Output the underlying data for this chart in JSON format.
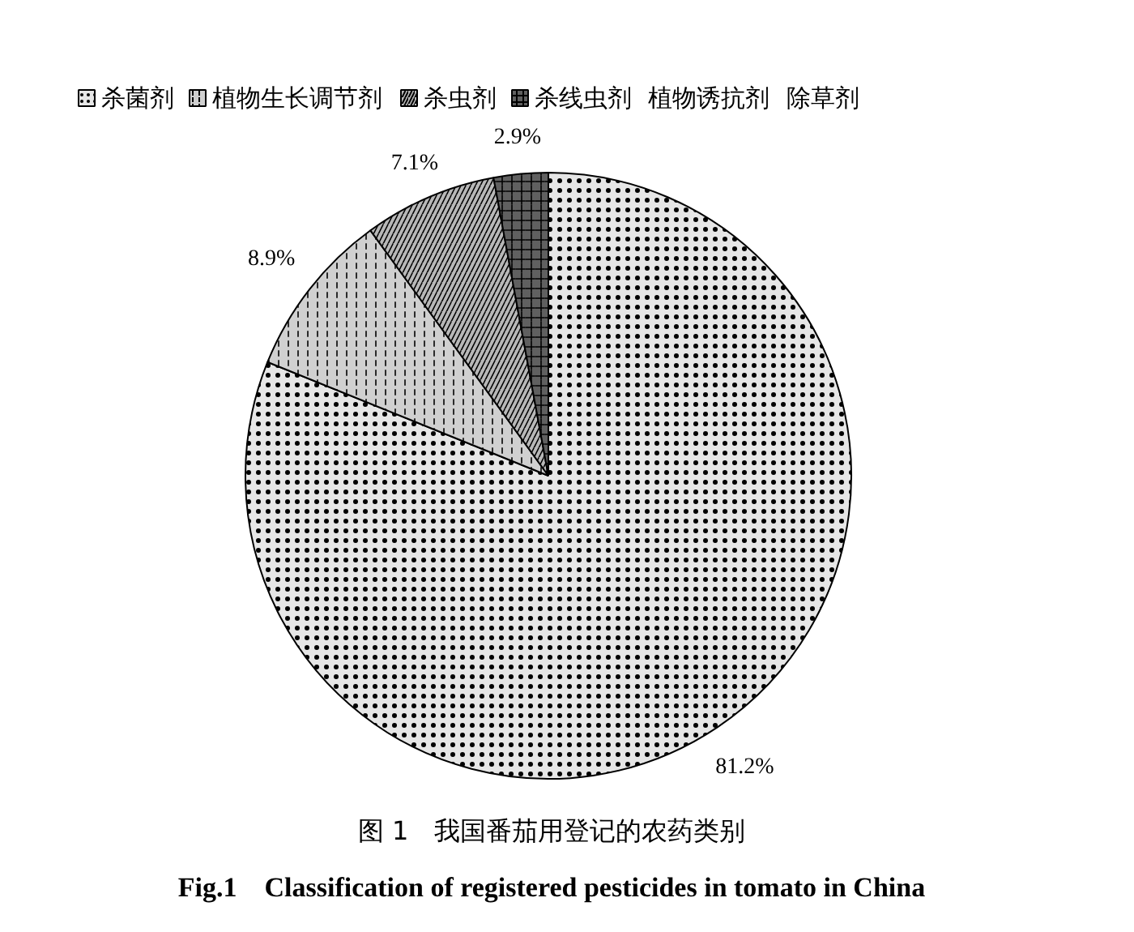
{
  "chart_data": {
    "type": "pie",
    "title": "图 1　我国番茄用登记的农药类别",
    "subtitle": "Fig.1　Classification of registered pesticides in tomato in China",
    "categories": [
      "杀菌剂",
      "植物生长调节剂",
      "杀虫剂",
      "杀线虫剂",
      "植物诱抗剂",
      "除草剂"
    ],
    "values": [
      81.2,
      8.9,
      7.1,
      2.9,
      0,
      0
    ],
    "colors": [
      "#e6e6e6",
      "#d0d0d0",
      "#b8b8b8",
      "#606060",
      "#ffffff",
      "#ffffff"
    ],
    "value_labels": [
      "81.2%",
      "8.9%",
      "7.1%",
      "2.9%",
      null,
      null
    ],
    "legend": "top"
  }
}
